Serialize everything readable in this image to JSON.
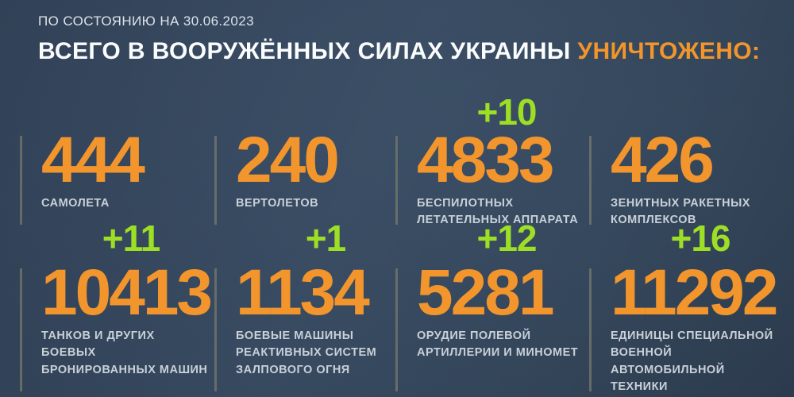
{
  "header": {
    "date_line": "ПО СОСТОЯНИЮ НА 30.06.2023",
    "title_main": "ВСЕГО В ВООРУЖЁННЫХ СИЛАХ УКРАИНЫ ",
    "title_accent": "УНИЧТОЖЕНО:"
  },
  "colors": {
    "background": "#32445a",
    "accent_orange": "#f2952c",
    "delta_green": "#9ddf25",
    "label_gray": "#c9d0d8",
    "divider": "#73766b"
  },
  "stats": [
    {
      "value": "444",
      "delta": "",
      "label": "САМОЛЕТА"
    },
    {
      "value": "240",
      "delta": "",
      "label": "ВЕРТОЛЕТОВ"
    },
    {
      "value": "4833",
      "delta": "+10",
      "label": "БЕСПИЛОТНЫХ\nЛЕТАТЕЛЬНЫХ АППАРАТА"
    },
    {
      "value": "426",
      "delta": "",
      "label": "ЗЕНИТНЫХ РАКЕТНЫХ\nКОМПЛЕКСОВ"
    },
    {
      "value": "10413",
      "delta": "+11",
      "label": "ТАНКОВ И ДРУГИХ БОЕВЫХ\nБРОНИРОВАННЫХ МАШИН"
    },
    {
      "value": "1134",
      "delta": "+1",
      "label": "БОЕВЫЕ МАШИНЫ\nРЕАКТИВНЫХ СИСТЕМ\nЗАЛПОВОГО ОГНЯ"
    },
    {
      "value": "5281",
      "delta": "+12",
      "label": "ОРУДИЕ ПОЛЕВОЙ\nАРТИЛЛЕРИИ И МИНОМЕТ"
    },
    {
      "value": "11292",
      "delta": "+16",
      "label": "ЕДИНИЦЫ СПЕЦИАЛЬНОЙ\nВОЕННОЙ АВТОМОБИЛЬНОЙ\nТЕХНИКИ"
    }
  ],
  "chart_data": {
    "type": "table",
    "title": "ВСЕГО В ВООРУЖЁННЫХ СИЛАХ УКРАИНЫ УНИЧТОЖЕНО:",
    "subtitle": "ПО СОСТОЯНИЮ НА 30.06.2023",
    "categories": [
      "самолета",
      "вертолетов",
      "беспилотных летательных аппарата",
      "зенитных ракетных комплексов",
      "танков и других боевых бронированных машин",
      "боевые машины реактивных систем залпового огня",
      "орудие полевой артиллерии и миномет",
      "единицы специальной военной автомобильной техники"
    ],
    "values": [
      444,
      240,
      4833,
      426,
      10413,
      1134,
      5281,
      11292
    ],
    "daily_increase": [
      null,
      null,
      10,
      null,
      11,
      1,
      12,
      16
    ],
    "legend_position": "none",
    "grid": false
  }
}
